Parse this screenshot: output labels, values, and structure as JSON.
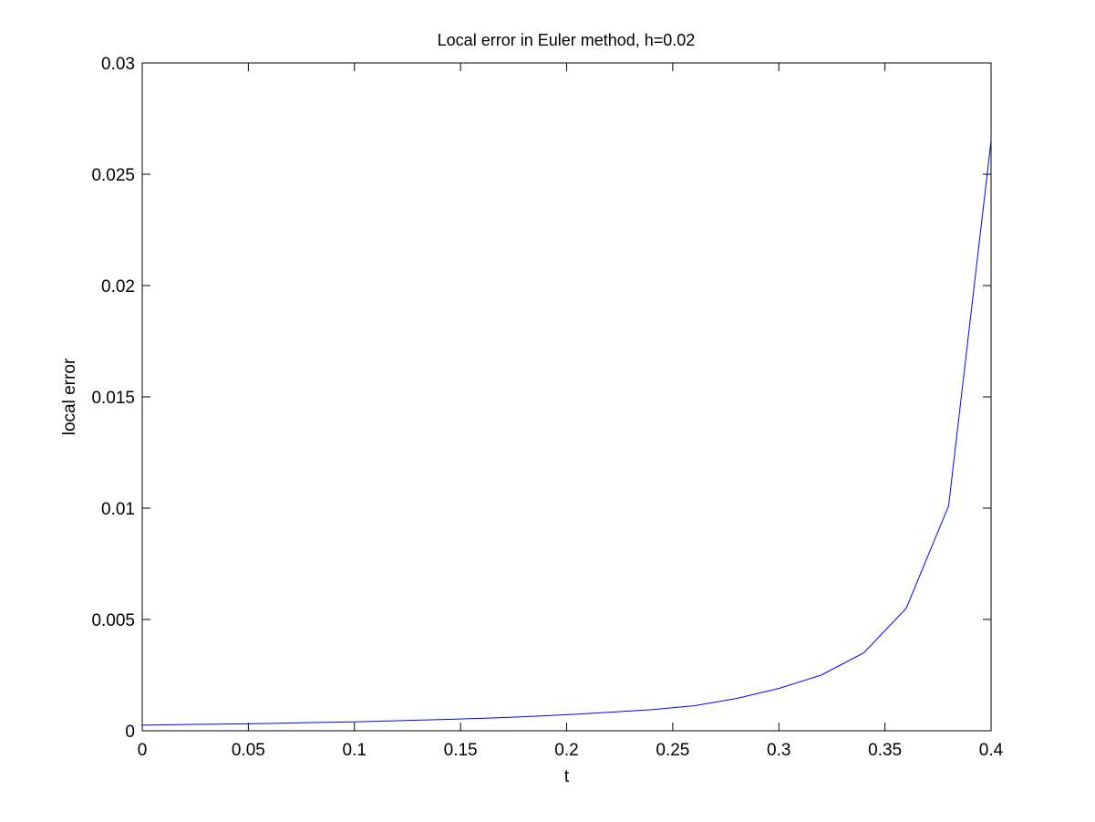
{
  "chart_data": {
    "type": "line",
    "title": "Local error in Euler method, h=0.02",
    "xlabel": "t",
    "ylabel": "local error",
    "xlim": [
      0,
      0.4
    ],
    "ylim": [
      0,
      0.03
    ],
    "grid": false,
    "xticks": [
      0,
      0.05,
      0.1,
      0.15,
      0.2,
      0.25,
      0.3,
      0.35,
      0.4
    ],
    "xtick_labels": [
      "0",
      "0.05",
      "0.1",
      "0.15",
      "0.2",
      "0.25",
      "0.3",
      "0.35",
      "0.4"
    ],
    "yticks": [
      0,
      0.005,
      0.01,
      0.015,
      0.02,
      0.025,
      0.03
    ],
    "ytick_labels": [
      "0",
      "0.005",
      "0.01",
      "0.015",
      "0.02",
      "0.025",
      "0.03"
    ],
    "series": [
      {
        "color": "#0000ff",
        "x": [
          0,
          0.02,
          0.04,
          0.06,
          0.08,
          0.1,
          0.12,
          0.14,
          0.16,
          0.18,
          0.2,
          0.22,
          0.24,
          0.26,
          0.28,
          0.3,
          0.32,
          0.34,
          0.36,
          0.38,
          0.4
        ],
        "y": [
          0.00025,
          0.00028,
          0.0003,
          0.00033,
          0.00037,
          0.0004,
          0.00045,
          0.0005,
          0.00056,
          0.00063,
          0.00072,
          0.00083,
          0.00095,
          0.00112,
          0.00145,
          0.0019,
          0.0025,
          0.0035,
          0.0055,
          0.0101,
          0.0265
        ]
      }
    ]
  }
}
